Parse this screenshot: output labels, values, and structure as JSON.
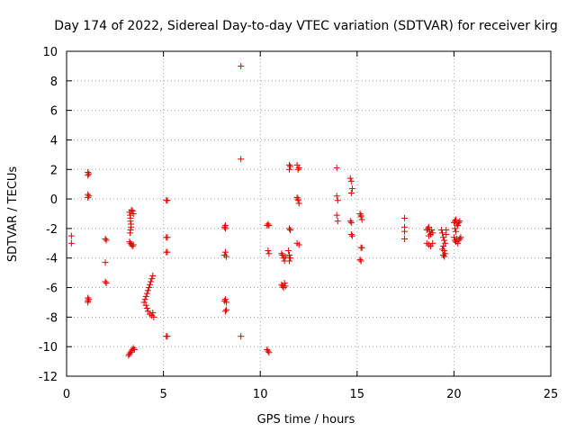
{
  "chart_data": {
    "type": "scatter",
    "title": "Day 174 of 2022, Sidereal Day-to-day VTEC variation (SDTVAR) for receiver kirg",
    "xlabel": "GPS time / hours",
    "ylabel": "SDTVAR / TECUs",
    "xlim": [
      0,
      25
    ],
    "ylim": [
      -12,
      10
    ],
    "grid": true,
    "x_ticks": [
      0,
      5,
      10,
      15,
      20,
      25
    ],
    "y_ticks": [
      -12,
      -10,
      -8,
      -6,
      -4,
      -2,
      0,
      2,
      4,
      6,
      8,
      10
    ],
    "marker": "+",
    "colors": {
      "points": "#e00000",
      "grid": "#a0a0a0",
      "axes": "#000000"
    },
    "series": [
      {
        "name": "SDTVAR",
        "points": [
          [
            0.25,
            -2.5
          ],
          [
            0.25,
            -3.0
          ],
          [
            1.1,
            1.8
          ],
          [
            1.1,
            1.6
          ],
          [
            1.15,
            1.7
          ],
          [
            1.1,
            0.3
          ],
          [
            1.1,
            0.1
          ],
          [
            1.15,
            0.2
          ],
          [
            1.1,
            -6.7
          ],
          [
            1.1,
            -6.9
          ],
          [
            1.1,
            -7.0
          ],
          [
            1.15,
            -6.8
          ],
          [
            2.0,
            -2.7
          ],
          [
            2.05,
            -2.8
          ],
          [
            2.0,
            -4.3
          ],
          [
            2.0,
            -5.6
          ],
          [
            2.05,
            -5.7
          ],
          [
            3.25,
            -0.9
          ],
          [
            3.28,
            -1.1
          ],
          [
            3.3,
            -1.3
          ],
          [
            3.3,
            -1.5
          ],
          [
            3.32,
            -1.7
          ],
          [
            3.33,
            -1.9
          ],
          [
            3.3,
            -2.1
          ],
          [
            3.28,
            -2.3
          ],
          [
            3.35,
            -0.75
          ],
          [
            3.4,
            -0.8
          ],
          [
            3.45,
            -1.0
          ],
          [
            3.25,
            -2.9
          ],
          [
            3.3,
            -3.0
          ],
          [
            3.35,
            -3.1
          ],
          [
            3.4,
            -3.2
          ],
          [
            3.45,
            -3.1
          ],
          [
            3.2,
            -10.6
          ],
          [
            3.25,
            -10.5
          ],
          [
            3.3,
            -10.4
          ],
          [
            3.35,
            -10.3
          ],
          [
            3.4,
            -10.2
          ],
          [
            3.45,
            -10.1
          ],
          [
            3.5,
            -10.2
          ],
          [
            4.0,
            -7.0
          ],
          [
            4.05,
            -6.8
          ],
          [
            4.1,
            -6.6
          ],
          [
            4.15,
            -6.4
          ],
          [
            4.2,
            -6.2
          ],
          [
            4.25,
            -6.0
          ],
          [
            4.3,
            -5.8
          ],
          [
            4.35,
            -5.6
          ],
          [
            4.4,
            -5.4
          ],
          [
            4.45,
            -5.2
          ],
          [
            4.1,
            -7.2
          ],
          [
            4.15,
            -7.4
          ],
          [
            4.2,
            -7.6
          ],
          [
            4.3,
            -7.8
          ],
          [
            4.4,
            -7.9
          ],
          [
            4.5,
            -8.0
          ],
          [
            4.45,
            -7.7
          ],
          [
            5.15,
            -0.1
          ],
          [
            5.2,
            -0.1
          ],
          [
            5.15,
            -2.6
          ],
          [
            5.2,
            -2.6
          ],
          [
            5.15,
            -3.6
          ],
          [
            5.2,
            -3.6
          ],
          [
            5.15,
            -9.3
          ],
          [
            5.2,
            -9.3
          ],
          [
            8.15,
            -1.9
          ],
          [
            8.2,
            -2.0
          ],
          [
            8.2,
            -1.8
          ],
          [
            8.15,
            -3.8
          ],
          [
            8.2,
            -3.6
          ],
          [
            8.25,
            -3.9
          ],
          [
            8.15,
            -6.9
          ],
          [
            8.2,
            -6.8
          ],
          [
            8.25,
            -7.0
          ],
          [
            8.2,
            -7.6
          ],
          [
            8.25,
            -7.5
          ],
          [
            9.0,
            9.0
          ],
          [
            9.0,
            2.7
          ],
          [
            9.0,
            -9.3
          ],
          [
            10.35,
            -1.8
          ],
          [
            10.4,
            -1.7
          ],
          [
            10.45,
            -1.8
          ],
          [
            10.4,
            -3.5
          ],
          [
            10.45,
            -3.7
          ],
          [
            10.35,
            -10.2
          ],
          [
            10.4,
            -10.3
          ],
          [
            10.45,
            -10.4
          ],
          [
            11.1,
            -3.7
          ],
          [
            11.15,
            -3.8
          ],
          [
            11.2,
            -4.0
          ],
          [
            11.25,
            -4.2
          ],
          [
            11.3,
            -3.9
          ],
          [
            11.1,
            -5.8
          ],
          [
            11.15,
            -5.9
          ],
          [
            11.2,
            -6.0
          ],
          [
            11.25,
            -5.7
          ],
          [
            11.3,
            -5.9
          ],
          [
            11.5,
            2.3
          ],
          [
            11.5,
            2.0
          ],
          [
            11.55,
            2.2
          ],
          [
            11.5,
            -2.0
          ],
          [
            11.55,
            -2.1
          ],
          [
            11.45,
            -3.5
          ],
          [
            11.5,
            -3.8
          ],
          [
            11.5,
            -4.2
          ],
          [
            11.55,
            -4.0
          ],
          [
            11.9,
            2.3
          ],
          [
            11.95,
            2.0
          ],
          [
            12.0,
            2.1
          ],
          [
            11.9,
            0.1
          ],
          [
            11.95,
            -0.1
          ],
          [
            12.0,
            -0.3
          ],
          [
            11.95,
            0.0
          ],
          [
            11.9,
            -3.0
          ],
          [
            12.0,
            -3.1
          ],
          [
            13.95,
            2.1
          ],
          [
            13.95,
            0.2
          ],
          [
            14.0,
            -0.1
          ],
          [
            13.95,
            -1.1
          ],
          [
            14.0,
            -1.5
          ],
          [
            14.65,
            1.4
          ],
          [
            14.7,
            1.2
          ],
          [
            14.75,
            0.7
          ],
          [
            14.7,
            0.4
          ],
          [
            14.65,
            -1.5
          ],
          [
            14.7,
            -1.6
          ],
          [
            14.7,
            -2.4
          ],
          [
            14.75,
            -2.5
          ],
          [
            15.15,
            -1.0
          ],
          [
            15.2,
            -1.2
          ],
          [
            15.25,
            -1.4
          ],
          [
            15.2,
            -1.1
          ],
          [
            15.2,
            -3.3
          ],
          [
            15.25,
            -3.3
          ],
          [
            15.15,
            -4.1
          ],
          [
            15.2,
            -4.2
          ],
          [
            17.45,
            -1.3
          ],
          [
            17.45,
            -1.9
          ],
          [
            17.45,
            -2.2
          ],
          [
            17.45,
            -2.7
          ],
          [
            18.6,
            -2.1
          ],
          [
            18.65,
            -2.0
          ],
          [
            18.7,
            -1.9
          ],
          [
            18.75,
            -2.2
          ],
          [
            18.8,
            -2.4
          ],
          [
            18.85,
            -2.1
          ],
          [
            18.9,
            -2.3
          ],
          [
            18.7,
            -2.5
          ],
          [
            18.6,
            -3.0
          ],
          [
            18.7,
            -3.1
          ],
          [
            18.8,
            -3.2
          ],
          [
            18.9,
            -3.0
          ],
          [
            19.35,
            -2.1
          ],
          [
            19.4,
            -2.3
          ],
          [
            19.45,
            -2.6
          ],
          [
            19.5,
            -2.8
          ],
          [
            19.55,
            -3.0
          ],
          [
            19.45,
            -3.2
          ],
          [
            19.4,
            -3.4
          ],
          [
            19.5,
            -3.5
          ],
          [
            19.55,
            -3.7
          ],
          [
            19.45,
            -3.8
          ],
          [
            19.5,
            -3.9
          ],
          [
            19.6,
            -2.4
          ],
          [
            19.6,
            -2.1
          ],
          [
            20.0,
            -1.6
          ],
          [
            20.05,
            -1.5
          ],
          [
            20.1,
            -1.4
          ],
          [
            20.15,
            -1.7
          ],
          [
            20.2,
            -1.8
          ],
          [
            20.25,
            -1.6
          ],
          [
            20.3,
            -1.5
          ],
          [
            20.05,
            -2.0
          ],
          [
            20.1,
            -2.2
          ],
          [
            20.0,
            -2.6
          ],
          [
            20.05,
            -2.8
          ],
          [
            20.1,
            -2.9
          ],
          [
            20.15,
            -2.7
          ],
          [
            20.2,
            -3.0
          ],
          [
            20.25,
            -2.8
          ],
          [
            20.3,
            -2.7
          ],
          [
            20.35,
            -2.6
          ]
        ]
      }
    ]
  }
}
